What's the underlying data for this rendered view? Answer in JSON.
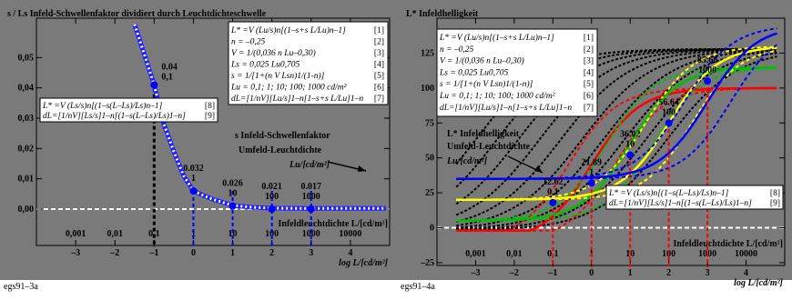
{
  "colors": {
    "panel_bg": "#7a7a7a",
    "white_line": "#ffffff",
    "blue_point": "#0000ff"
  },
  "chart_data": [
    {
      "id": "egs91-3a",
      "type": "line",
      "figure_label": "egs91–3a",
      "title": "s / Ls  Infeld-Schwellenfaktor dividiert durch Leuchtdichteschwelle",
      "title_italic": "s / L",
      "title_sub": "s",
      "title_rest": "  Infeld-Schwellenfaktor dividiert durch Leuchtdichteschwelle",
      "xlim": [
        -4,
        5
      ],
      "ylim": [
        -0.012,
        0.063
      ],
      "x_ticks": [
        -3,
        -2,
        -1,
        0,
        1,
        2,
        3,
        4
      ],
      "x_ticks_labels": [
        "–3",
        "–2",
        "–1",
        "0",
        "1",
        "2",
        "3",
        "4"
      ],
      "x_ticks_top_labels": [
        "0,001",
        "0,01",
        "0,1",
        "1",
        "10",
        "100",
        "1000",
        "10000"
      ],
      "y_ticks": [
        0.0,
        0.01,
        0.02,
        0.03,
        0.04,
        0.05
      ],
      "y_ticks_labels": [
        "0,00",
        "0,01",
        "0,02",
        "0,03",
        "0,04",
        "0,05"
      ],
      "xlabel": "log L/[cd/m²]",
      "xlabel_top": "Infeldleuchtdichte L/[cd/m²]",
      "grid": false,
      "curve": {
        "name": "s / Ls",
        "style": "dotted white on blue",
        "x": [
          -1.5,
          -1.25,
          -1.0,
          -0.75,
          -0.5,
          -0.25,
          0.0,
          0.25,
          0.5,
          1.0,
          1.5,
          2.0,
          3.0,
          4.0,
          4.9
        ],
        "y": [
          0.061,
          0.051,
          0.041,
          0.028,
          0.019,
          0.011,
          0.006,
          0.0045,
          0.0032,
          0.0012,
          0.0006,
          0.0003,
          0.0002,
          0.0002,
          0.0002
        ]
      },
      "points": [
        {
          "x": -1,
          "y": 0.041,
          "label1": "0.04",
          "label2": "0,1"
        },
        {
          "x": 0,
          "y": 0.006,
          "label1": "0.032",
          "label2": "1"
        },
        {
          "x": 1,
          "y": 0.001,
          "label1": "0.026",
          "label2": "10"
        },
        {
          "x": 2,
          "y": 0.0,
          "label1": "0.021",
          "label2": "100"
        },
        {
          "x": 3,
          "y": 0.0,
          "label1": "0.017",
          "label2": "1000"
        }
      ],
      "vertical_marker": {
        "x": -1,
        "style": "black dashed"
      },
      "formula_box": [
        {
          "text": "L* =V (Lu/s)n[(1–s+s L/Lu)n–1]",
          "num": "[1]"
        },
        {
          "text": "n = –0,25",
          "num": "[2]"
        },
        {
          "text": "V = 1/(0,036 n Lu–0,30)",
          "num": "[3]"
        },
        {
          "text": "Ls = 0,025 Lu0,705",
          "num": "[4]"
        },
        {
          "text": "s = 1/[1+(n V Lsn)1/(1-n)]",
          "num": "[5]"
        },
        {
          "text": "Lu = 0,1; 1; 10; 100; 1000 cd/m²",
          "num": "[6]"
        },
        {
          "text": "dL=[1/nV][Lu/s]1–n[1–s+s L/Lu]1–n",
          "num": "[7]"
        }
      ],
      "formula_box_2": [
        {
          "text": "L* =V (Ls/s)n[(1–s(L–Ls)/Ls)n–1]",
          "num": "[8]"
        },
        {
          "text": "dL=[1/nV][Ls/s]1–n[(1–s(L–Ls)/Ls)1–n]",
          "num": "[9]"
        }
      ],
      "annotation": {
        "line1": "s  Infeld-Schwellenfaktor",
        "line2": "Umfeld-Leuchtdichte",
        "line3": "Lu/[cd/m²]"
      }
    },
    {
      "id": "egs91-4a",
      "type": "line",
      "figure_label": "egs91–4a",
      "title": "L* Infeldhelligkeit",
      "xlim": [
        -4,
        5
      ],
      "ylim": [
        -27,
        150
      ],
      "x_ticks": [
        -3,
        -2,
        -1,
        0,
        1,
        2,
        3,
        4
      ],
      "x_ticks_labels": [
        "–3",
        "–2",
        "–1",
        "0",
        "1",
        "2",
        "3",
        "4"
      ],
      "x_ticks_top_labels": [
        "0,001",
        "0,01",
        "0,1",
        "1",
        "10",
        "100",
        "1000",
        "10000"
      ],
      "y_ticks": [
        -25,
        0,
        25,
        50,
        75,
        100,
        125
      ],
      "y_ticks_labels": [
        "–25",
        "0",
        "25",
        "50",
        "75",
        "100",
        "125"
      ],
      "xlabel": "log L/[cd/m²]",
      "xlabel_top": "Infeldleuchtdichte L/[cd/m²]",
      "grid": false,
      "points": [
        {
          "x": -1,
          "y": 18,
          "label1": "12.62",
          "label2": "0,1"
        },
        {
          "x": 0,
          "y": 32,
          "label1": "21.89",
          "label2": "1"
        },
        {
          "x": 1,
          "y": 52,
          "label1": "36.02",
          "label2": "10"
        },
        {
          "x": 2,
          "y": 75,
          "label1": "56.64",
          "label2": "100"
        },
        {
          "x": 3,
          "y": 105,
          "label1": "85.66",
          "label2": "1000"
        }
      ],
      "series": [
        {
          "name": "",
          "color": "#ff0000",
          "Lu_log": 0
        },
        {
          "name": "",
          "color": "#00c000",
          "Lu_log": 1
        },
        {
          "name": "",
          "color": "#ffff00",
          "Lu_log": 2
        },
        {
          "name": "",
          "color": "#0000ff",
          "Lu_log": 3
        }
      ],
      "annotation": {
        "line1": "L* Infeldhelligkeit",
        "line2": "Umfeld-Leuchtdichte",
        "line3": "Lu/[cd/m²]"
      }
    }
  ]
}
